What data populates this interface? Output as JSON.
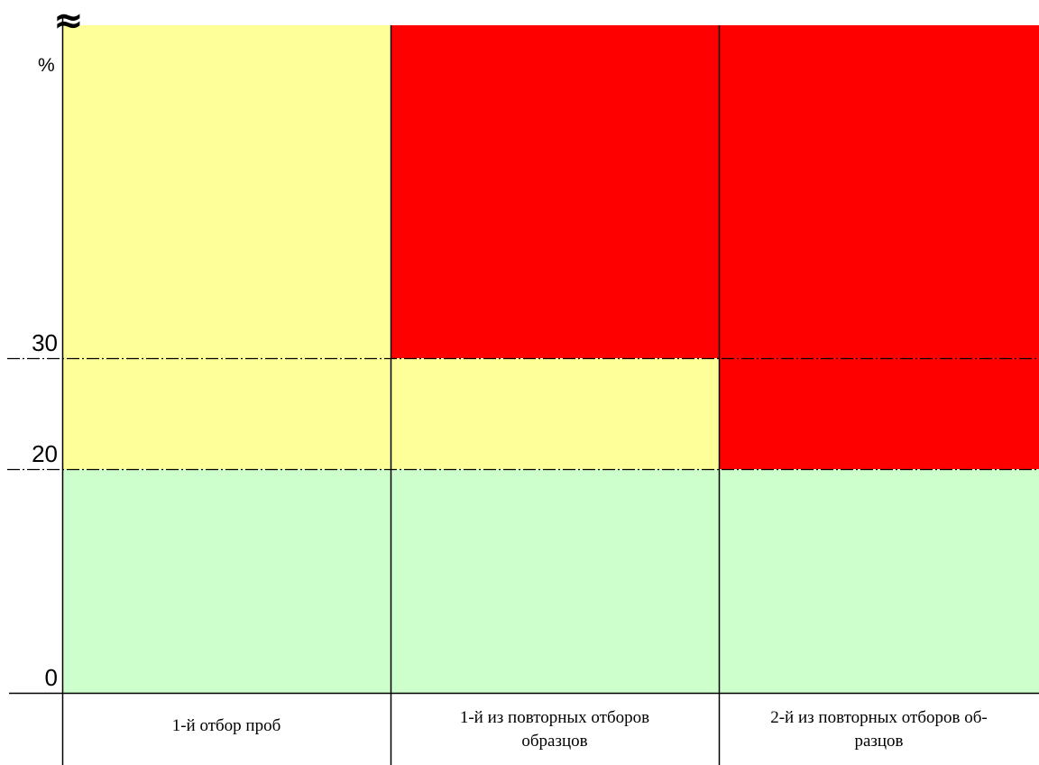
{
  "chart_data": {
    "type": "heatmap",
    "title": "",
    "xlabel": "",
    "ylabel": "%",
    "axis_break_symbol": "≈",
    "y_ticks": [
      "0",
      "20",
      "30"
    ],
    "threshold_lines": [
      20,
      30
    ],
    "threshold_line_style": "dash-dot",
    "columns": [
      {
        "label_lines": [
          "1-й отбор проб"
        ],
        "bands": [
          {
            "from": 0,
            "to": 20,
            "color": "#ccffcc"
          },
          {
            "from": 20,
            "to": 30,
            "color": "#ffff99"
          },
          {
            "from": 30,
            "to": "top",
            "color": "#ffff99"
          }
        ]
      },
      {
        "label_lines": [
          "1-й из повторных отборов",
          "образцов"
        ],
        "bands": [
          {
            "from": 0,
            "to": 20,
            "color": "#ccffcc"
          },
          {
            "from": 20,
            "to": 30,
            "color": "#ffff99"
          },
          {
            "from": 30,
            "to": "top",
            "color": "#ff0000"
          }
        ]
      },
      {
        "label_lines": [
          "2-й из повторных отборов об-",
          "разцов"
        ],
        "bands": [
          {
            "from": 0,
            "to": 20,
            "color": "#ccffcc"
          },
          {
            "from": 20,
            "to": 30,
            "color": "#ff0000"
          },
          {
            "from": 30,
            "to": "top",
            "color": "#ff0000"
          }
        ]
      }
    ],
    "colors": {
      "green": "#ccffcc",
      "yellow": "#ffff99",
      "red": "#ff0000",
      "lines": "#000000"
    }
  }
}
